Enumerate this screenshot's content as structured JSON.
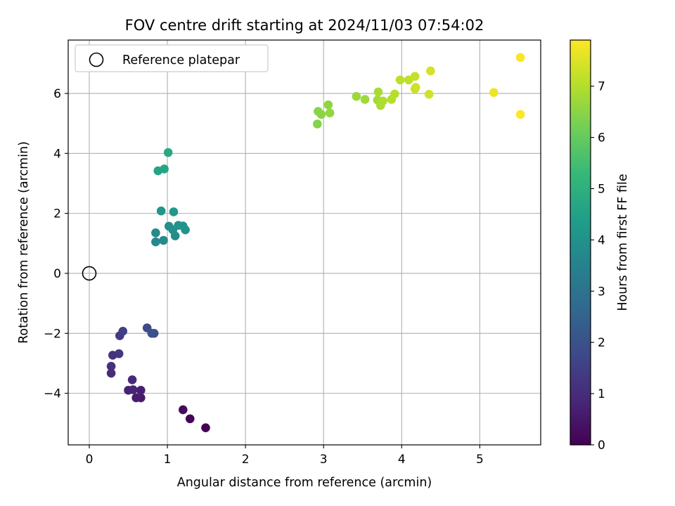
{
  "chart_data": {
    "type": "scatter",
    "title": "FOV centre drift starting at 2024/11/03 07:54:02",
    "xlabel": "Angular distance from reference (arcmin)",
    "ylabel": "Rotation from reference (arcmin)",
    "xlim": [
      -0.27,
      5.78
    ],
    "ylim": [
      -5.72,
      7.78
    ],
    "xticks": [
      0,
      1,
      2,
      3,
      4,
      5
    ],
    "yticks": [
      -4,
      -2,
      0,
      2,
      4,
      6
    ],
    "grid": true,
    "legend": {
      "position": "top-left",
      "entries": [
        "Reference platepar"
      ]
    },
    "reference": {
      "x": 0,
      "y": 0,
      "label": "Reference platepar"
    },
    "colorbar": {
      "label": "Hours from first FF file",
      "min": 0,
      "max": 7.9,
      "ticks": [
        0,
        1,
        2,
        3,
        4,
        5,
        6,
        7
      ],
      "colormap": "viridis"
    },
    "points": [
      {
        "x": 1.49,
        "y": -5.15,
        "t": 0.02
      },
      {
        "x": 1.29,
        "y": -4.85,
        "t": 0.12
      },
      {
        "x": 1.2,
        "y": -4.55,
        "t": 0.22
      },
      {
        "x": 0.66,
        "y": -4.15,
        "t": 0.55
      },
      {
        "x": 0.6,
        "y": -4.15,
        "t": 0.62
      },
      {
        "x": 0.66,
        "y": -3.9,
        "t": 0.68
      },
      {
        "x": 0.5,
        "y": -3.9,
        "t": 0.75
      },
      {
        "x": 0.56,
        "y": -3.88,
        "t": 0.82
      },
      {
        "x": 0.55,
        "y": -3.55,
        "t": 0.9
      },
      {
        "x": 0.28,
        "y": -3.33,
        "t": 1.0
      },
      {
        "x": 0.28,
        "y": -3.1,
        "t": 1.08
      },
      {
        "x": 0.3,
        "y": -2.73,
        "t": 1.16
      },
      {
        "x": 0.38,
        "y": -2.68,
        "t": 1.25
      },
      {
        "x": 0.39,
        "y": -2.08,
        "t": 1.38
      },
      {
        "x": 0.43,
        "y": -1.93,
        "t": 1.48
      },
      {
        "x": 0.74,
        "y": -1.82,
        "t": 1.8
      },
      {
        "x": 0.83,
        "y": -2.0,
        "t": 1.9
      },
      {
        "x": 0.8,
        "y": -2.0,
        "t": 2.0
      },
      {
        "x": 0.85,
        "y": 1.05,
        "t": 3.7
      },
      {
        "x": 0.95,
        "y": 1.1,
        "t": 3.75
      },
      {
        "x": 0.85,
        "y": 1.35,
        "t": 3.8
      },
      {
        "x": 1.1,
        "y": 1.25,
        "t": 3.85
      },
      {
        "x": 1.02,
        "y": 1.57,
        "t": 3.9
      },
      {
        "x": 1.07,
        "y": 1.45,
        "t": 3.95
      },
      {
        "x": 1.14,
        "y": 1.6,
        "t": 4.0
      },
      {
        "x": 1.2,
        "y": 1.58,
        "t": 4.05
      },
      {
        "x": 1.23,
        "y": 1.45,
        "t": 4.1
      },
      {
        "x": 0.92,
        "y": 2.08,
        "t": 4.15
      },
      {
        "x": 1.08,
        "y": 2.05,
        "t": 4.2
      },
      {
        "x": 0.88,
        "y": 3.42,
        "t": 4.6
      },
      {
        "x": 0.96,
        "y": 3.48,
        "t": 4.65
      },
      {
        "x": 1.01,
        "y": 4.03,
        "t": 4.75
      },
      {
        "x": 2.92,
        "y": 4.98,
        "t": 6.4
      },
      {
        "x": 2.93,
        "y": 5.4,
        "t": 6.45
      },
      {
        "x": 2.97,
        "y": 5.3,
        "t": 6.5
      },
      {
        "x": 3.06,
        "y": 5.62,
        "t": 6.55
      },
      {
        "x": 3.08,
        "y": 5.35,
        "t": 6.6
      },
      {
        "x": 3.42,
        "y": 5.9,
        "t": 6.7
      },
      {
        "x": 3.53,
        "y": 5.8,
        "t": 6.75
      },
      {
        "x": 3.69,
        "y": 5.78,
        "t": 6.8
      },
      {
        "x": 3.7,
        "y": 6.05,
        "t": 6.85
      },
      {
        "x": 3.73,
        "y": 5.6,
        "t": 6.9
      },
      {
        "x": 3.76,
        "y": 5.75,
        "t": 6.95
      },
      {
        "x": 3.87,
        "y": 5.8,
        "t": 7.0
      },
      {
        "x": 3.91,
        "y": 5.98,
        "t": 7.05
      },
      {
        "x": 3.98,
        "y": 6.45,
        "t": 7.1
      },
      {
        "x": 4.09,
        "y": 6.45,
        "t": 7.15
      },
      {
        "x": 4.17,
        "y": 6.57,
        "t": 7.2
      },
      {
        "x": 4.17,
        "y": 6.15,
        "t": 7.25
      },
      {
        "x": 4.18,
        "y": 6.2,
        "t": 7.3
      },
      {
        "x": 4.35,
        "y": 5.97,
        "t": 7.35
      },
      {
        "x": 4.37,
        "y": 6.75,
        "t": 7.4
      },
      {
        "x": 5.18,
        "y": 6.03,
        "t": 7.7
      },
      {
        "x": 5.52,
        "y": 7.2,
        "t": 7.85
      },
      {
        "x": 5.52,
        "y": 5.3,
        "t": 7.9
      }
    ]
  }
}
